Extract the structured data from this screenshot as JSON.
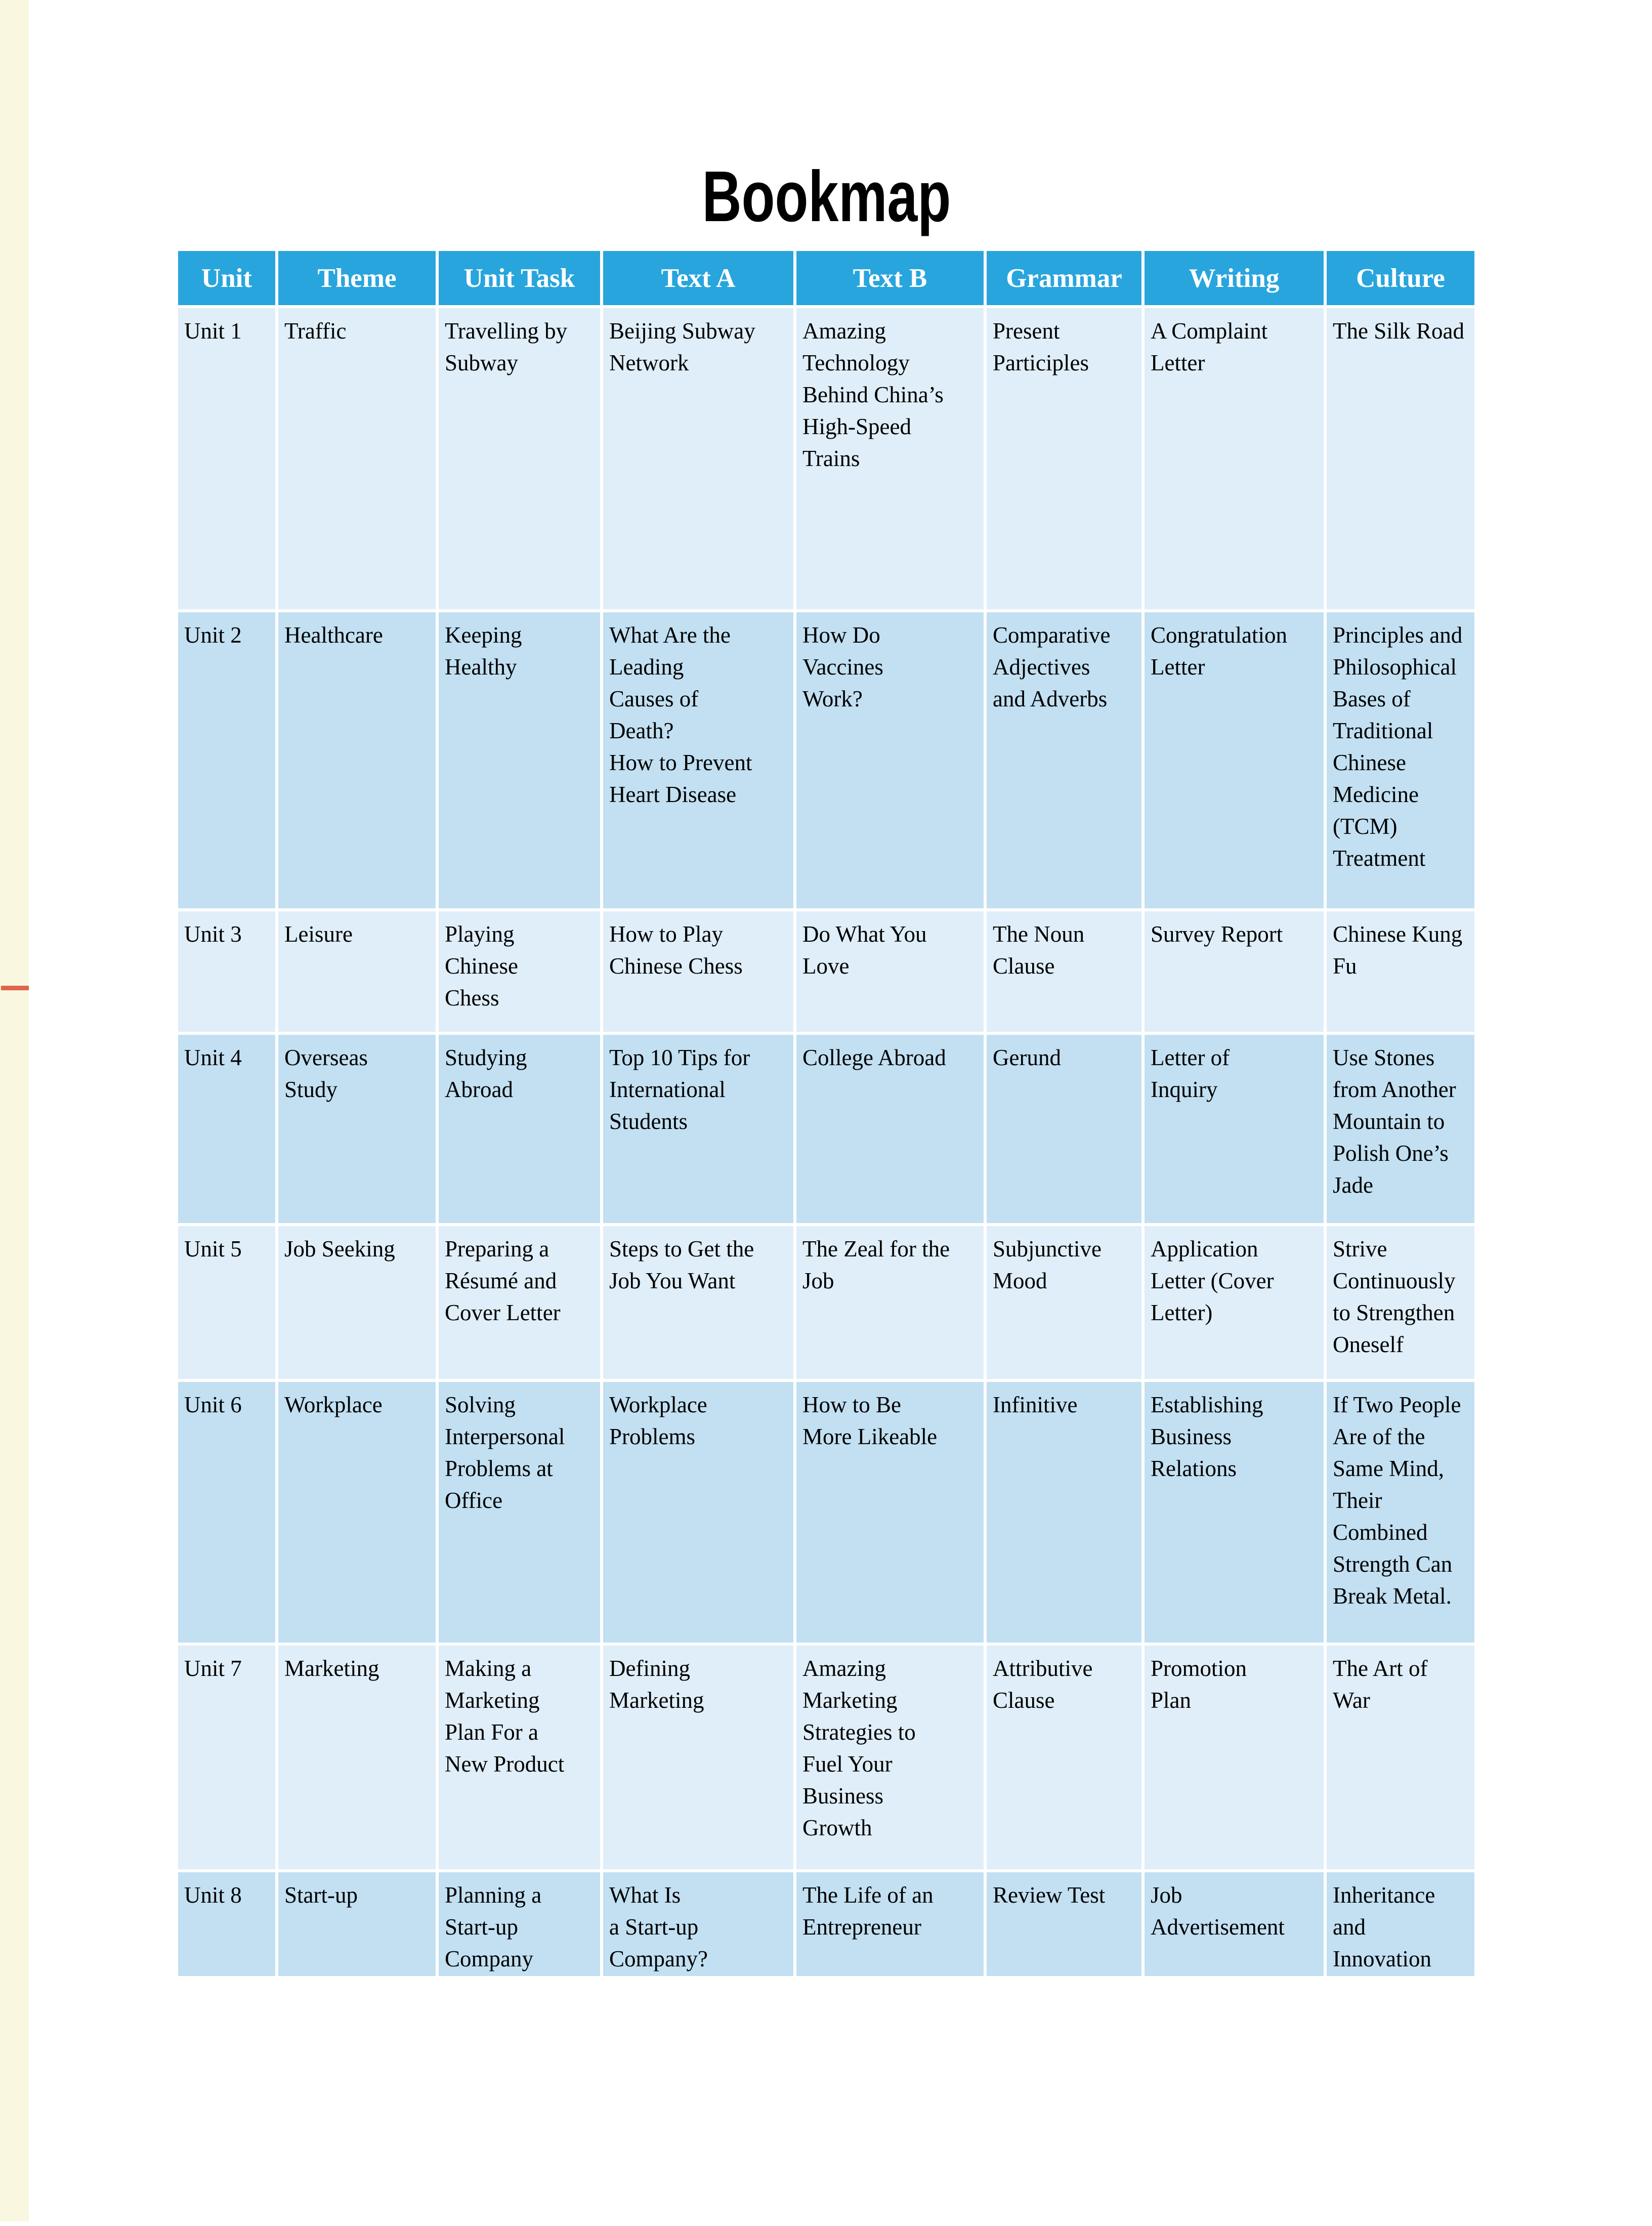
{
  "page": {
    "title": "Bookmap"
  },
  "colors": {
    "header_blue": "#29a5dd",
    "row_light": "#dfeef8",
    "row_dark": "#c2e0f2",
    "margin_strip": "#f9f7e0",
    "margin_marker": "#e0654d",
    "text": "#000000"
  },
  "table": {
    "headers": [
      "Unit",
      "Theme",
      "Unit Task",
      "Text A",
      "Text B",
      "Grammar",
      "Writing",
      "Culture"
    ],
    "rows": [
      [
        "Unit 1",
        "Traffic",
        "Travelling by\nSubway",
        "Beijing Subway\nNetwork",
        "Amazing\nTechnology\nBehind China’s\nHigh-Speed\nTrains",
        "Present\nParticiples",
        "A Complaint\nLetter",
        "The Silk Road"
      ],
      [
        "Unit 2",
        "Healthcare",
        "Keeping\nHealthy",
        "What Are the\nLeading\nCauses of\nDeath?\nHow to Prevent\nHeart Disease",
        "How Do\nVaccines\nWork?",
        "Comparative\nAdjectives\nand Adverbs",
        "Congratulation\nLetter",
        "Principles and\nPhilosophical\nBases of\nTraditional\nChinese\nMedicine\n(TCM)\nTreatment"
      ],
      [
        "Unit 3",
        "Leisure",
        "Playing\nChinese\nChess",
        "How to Play\nChinese Chess",
        "Do What You\nLove",
        "The Noun\nClause",
        "Survey Report",
        "Chinese Kung\nFu"
      ],
      [
        "Unit 4",
        "Overseas\nStudy",
        "Studying\nAbroad",
        "Top 10 Tips for\nInternational\nStudents",
        "College Abroad",
        "Gerund",
        "Letter of\nInquiry",
        "Use Stones\nfrom Another\nMountain to\nPolish One’s\nJade"
      ],
      [
        "Unit 5",
        "Job Seeking",
        "Preparing a\nRésumé and\nCover Letter",
        "Steps to Get the\nJob You Want",
        "The Zeal for the\nJob",
        "Subjunctive\nMood",
        "Application\nLetter (Cover\nLetter)",
        "Strive\nContinuously\nto Strengthen\nOneself"
      ],
      [
        "Unit 6",
        "Workplace",
        "Solving\nInterpersonal\nProblems at\nOffice",
        "Workplace\nProblems",
        "How to Be\nMore Likeable",
        "Infinitive",
        "Establishing\nBusiness\nRelations",
        "If Two People\nAre of the\nSame Mind,\nTheir\nCombined\nStrength Can\nBreak Metal."
      ],
      [
        "Unit 7",
        "Marketing",
        "Making a\nMarketing\nPlan For a\nNew Product",
        "Defining\nMarketing",
        "Amazing\nMarketing\nStrategies to\nFuel Your\nBusiness\nGrowth",
        "Attributive\nClause",
        "Promotion\nPlan",
        "The Art of\nWar"
      ],
      [
        "Unit 8",
        "Start-up",
        "Planning a\nStart-up\nCompany",
        "What Is\na Start-up\nCompany?",
        "The Life of an\nEntrepreneur",
        "Review Test",
        "Job\nAdvertisement",
        "Inheritance\nand\nInnovation"
      ]
    ]
  }
}
